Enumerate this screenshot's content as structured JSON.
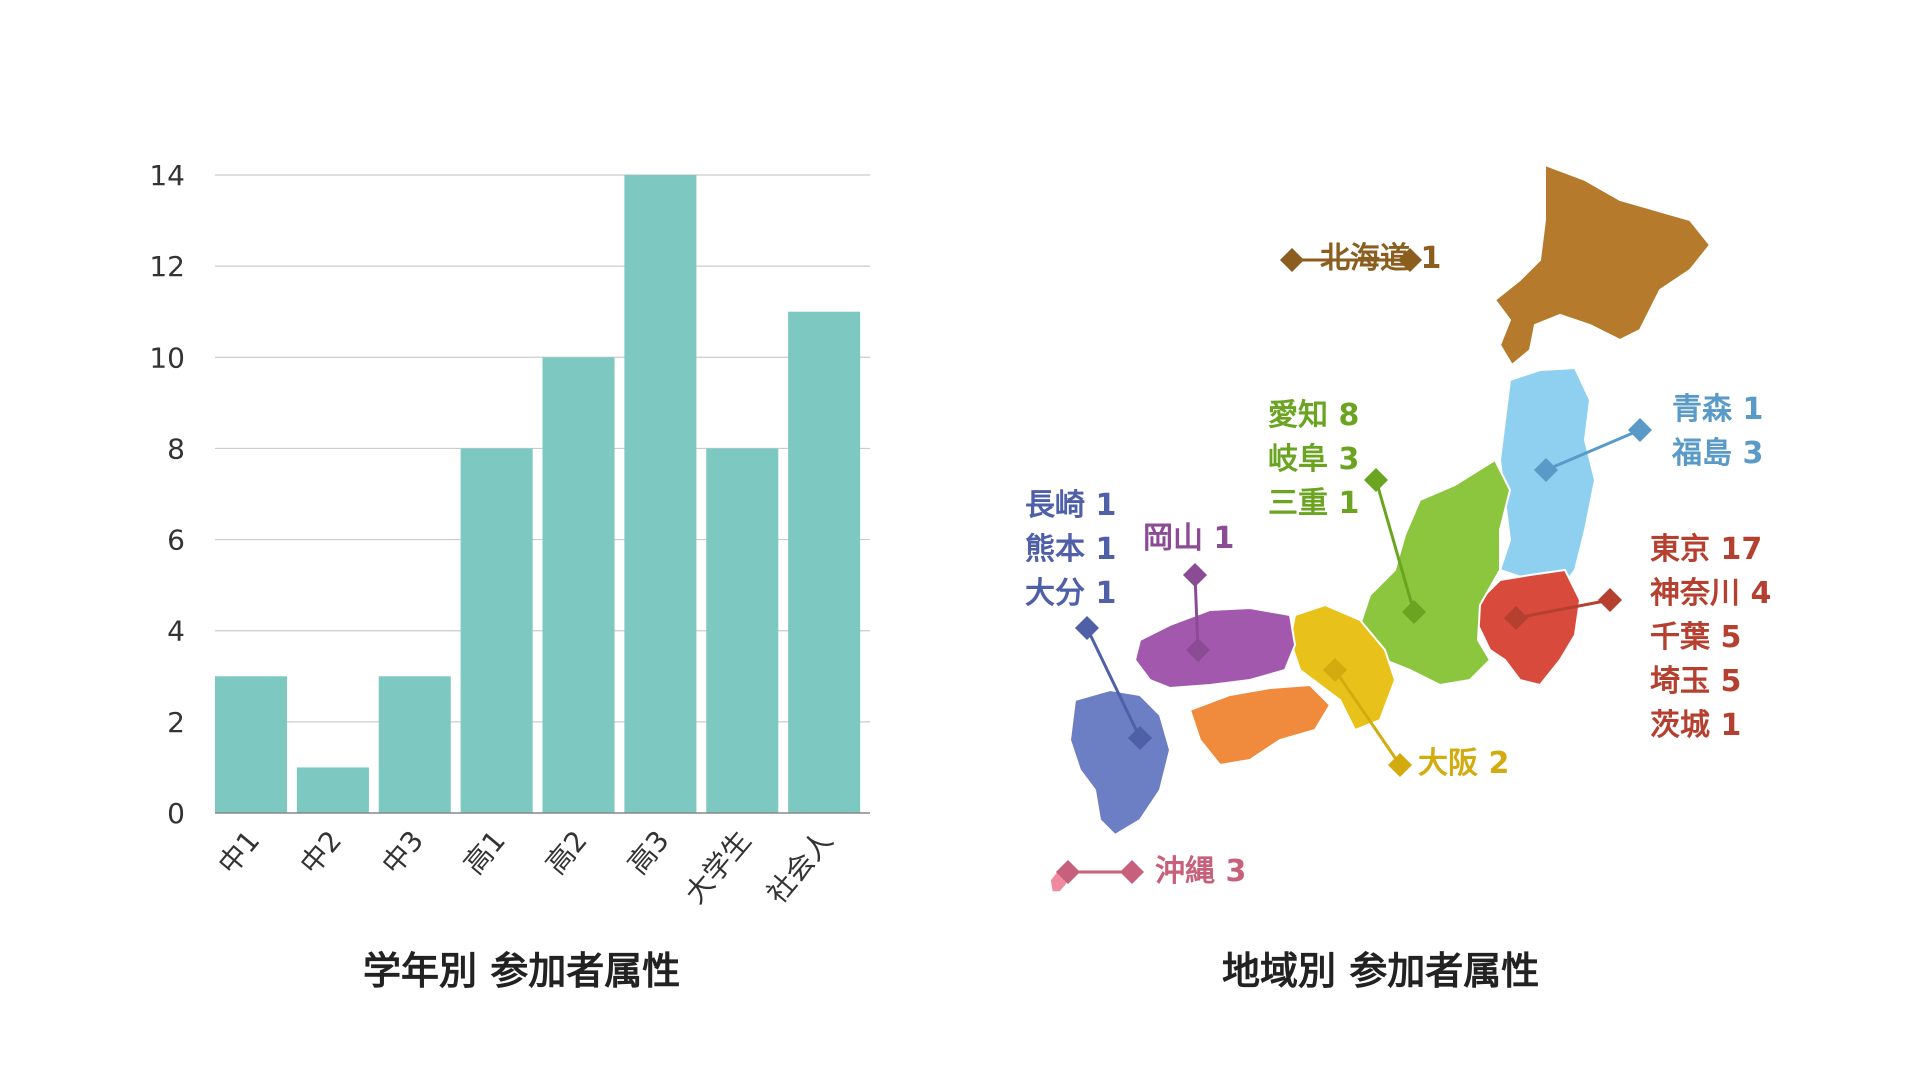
{
  "titles": {
    "grade": "学年別 参加者属性",
    "region": "地域別 参加者属性"
  },
  "chart_data": [
    {
      "type": "bar",
      "title": "学年別 参加者属性",
      "categories": [
        "中1",
        "中2",
        "中3",
        "高1",
        "高2",
        "高3",
        "大学生",
        "社会人"
      ],
      "values": [
        3,
        1,
        3,
        8,
        10,
        14,
        8,
        11
      ],
      "yticks": [
        "0",
        "2",
        "4",
        "6",
        "8",
        "10",
        "12",
        "14"
      ],
      "ylim": [
        0,
        14
      ],
      "grid": true,
      "color": "#7ec8c2"
    }
  ],
  "map": {
    "title": "地域別 参加者属性",
    "regions": [
      {
        "id": "hokkaido",
        "color": "#8b5e1f",
        "fill": "#b57a2c",
        "lines": [
          "北海道 1"
        ]
      },
      {
        "id": "tohoku",
        "color": "#5a9ac7",
        "fill": "#8fd0f0",
        "lines": [
          "青森 1",
          "福島 3"
        ]
      },
      {
        "id": "kanto",
        "color": "#b5402f",
        "fill": "#d84a3c",
        "lines": [
          "東京 17",
          "神奈川 4",
          "千葉 5",
          "埼玉 5",
          "茨城 1"
        ]
      },
      {
        "id": "chubu",
        "color": "#6aa420",
        "fill": "#8cc63f",
        "lines": [
          "愛知 8",
          "岐阜 3",
          "三重 1"
        ]
      },
      {
        "id": "kinki",
        "color": "#d3ab0f",
        "fill": "#e8c21a",
        "lines": [
          "大阪 2"
        ]
      },
      {
        "id": "chugoku",
        "color": "#8b4c95",
        "fill": "#a259ad",
        "lines": [
          "岡山 1"
        ]
      },
      {
        "id": "shikoku",
        "color": "#e8762e",
        "fill": "#f08a3c",
        "lines": []
      },
      {
        "id": "kyushu",
        "color": "#4f5fa8",
        "fill": "#6c7ec4",
        "lines": [
          "長崎 1",
          "熊本 1",
          "大分 1"
        ]
      },
      {
        "id": "okinawa",
        "color": "#c7607a",
        "fill": "#f08aa0",
        "lines": [
          "沖縄 3"
        ]
      }
    ]
  }
}
